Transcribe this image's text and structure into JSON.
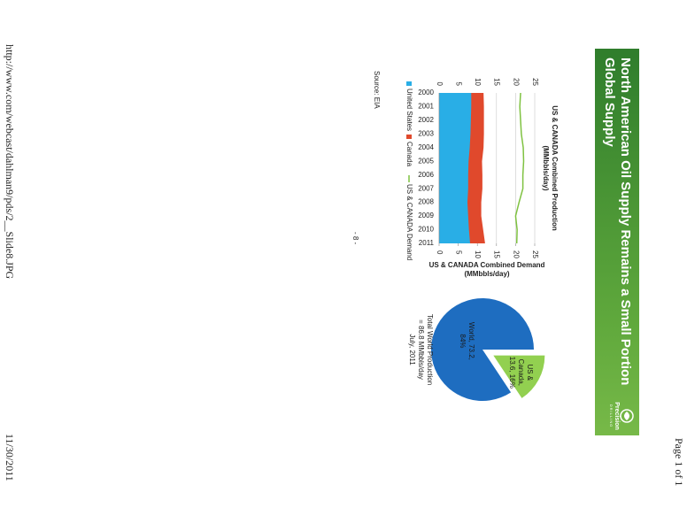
{
  "page": {
    "page_number": "Page 1 of 1",
    "url": "http://www.com/webcast/dahlman9/pds/2__Slide8.JPG",
    "date": "11/30/2011"
  },
  "slide": {
    "title": "North American Oil Supply Remains a Small Portion Global Supply",
    "logo_name": "Precision",
    "logo_sub": "DRILLING",
    "source": "Source: EIA",
    "page_label": "- 8 -",
    "caption": [
      "Total World Production",
      "= 86.8 MMbbls/day",
      "July, 2011"
    ]
  },
  "chart_data": [
    {
      "type": "area",
      "stacked": true,
      "title": "US & CANADA Combined Production",
      "title_units": "(MMbbls/day)",
      "y2_label": "US & CANADA Combined Demand",
      "y2_label_units": "(MMbbls/day)",
      "categories": [
        "2000",
        "2001",
        "2002",
        "2003",
        "2004",
        "2005",
        "2006",
        "2007",
        "2008",
        "2009",
        "2010",
        "2011"
      ],
      "series": [
        {
          "name": "United States",
          "type": "area",
          "color": "#29aee6",
          "values": [
            8.4,
            8.4,
            8.3,
            8.2,
            8.0,
            7.7,
            7.6,
            7.6,
            7.4,
            7.6,
            7.8,
            8.1
          ]
        },
        {
          "name": "Canada",
          "type": "area",
          "color": "#e0492c",
          "values": [
            3.1,
            3.2,
            3.3,
            3.4,
            3.5,
            3.4,
            3.6,
            3.6,
            3.5,
            3.3,
            3.6,
            3.8
          ]
        },
        {
          "name": "US & CANADA Demand",
          "type": "line",
          "axis": "y2",
          "color": "#7fc241",
          "values": [
            21.3,
            21.1,
            21.3,
            21.5,
            22.0,
            22.1,
            21.9,
            21.9,
            20.9,
            20.0,
            20.4,
            20.3
          ]
        }
      ],
      "ylim": [
        0,
        25
      ],
      "yticks": [
        0,
        5,
        10,
        15,
        20,
        25
      ],
      "y2lim": [
        0,
        25
      ],
      "y2ticks": [
        0,
        5,
        10,
        15,
        20,
        25
      ],
      "grid": true
    },
    {
      "type": "pie",
      "categories": [
        "World",
        "US & Canada"
      ],
      "values": [
        73.2,
        13.6
      ],
      "value_labels": [
        "World, 73.2, 84%",
        "US & Canada, 13.6, 16%"
      ],
      "colors": [
        "#1e6dc0",
        "#92d050"
      ],
      "explode": [
        false,
        true
      ]
    }
  ]
}
